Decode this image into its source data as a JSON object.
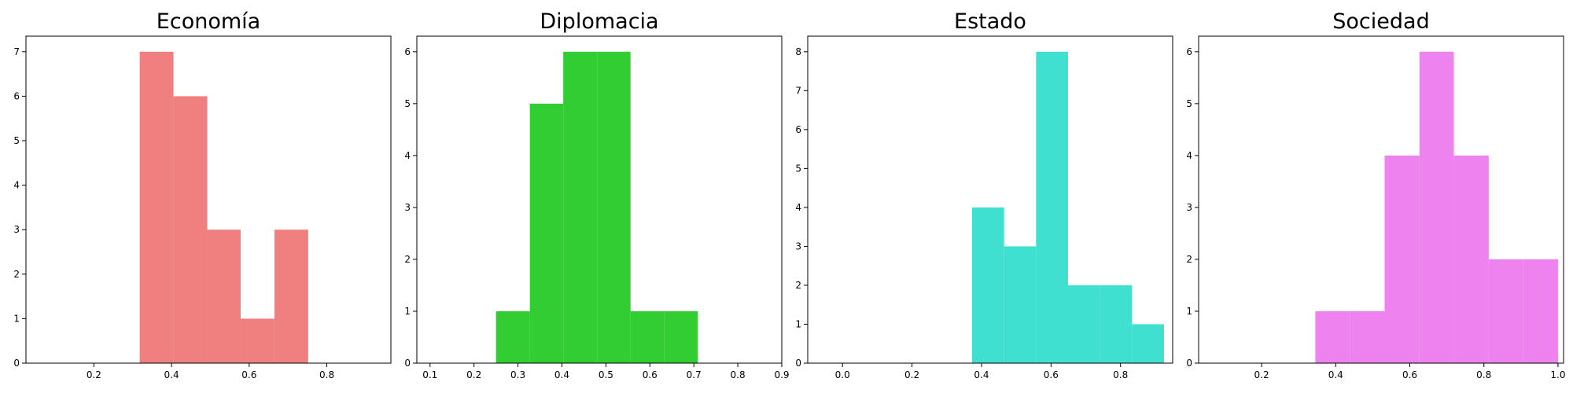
{
  "chart_data": [
    {
      "type": "bar",
      "title": "Economía",
      "color": "#f08080",
      "xlim": [
        0.025,
        0.965
      ],
      "ylim": [
        0,
        7.35
      ],
      "xticks": [
        0.2,
        0.4,
        0.6,
        0.8
      ],
      "xtick_labels": [
        "0.2",
        "0.4",
        "0.6",
        "0.8"
      ],
      "yticks": [
        0,
        1,
        2,
        3,
        4,
        5,
        6,
        7
      ],
      "ytick_labels": [
        "0",
        "1",
        "2",
        "3",
        "4",
        "5",
        "6",
        "7"
      ],
      "bins": [
        {
          "x0": 0.318,
          "x1": 0.405,
          "count": 7
        },
        {
          "x0": 0.405,
          "x1": 0.492,
          "count": 6
        },
        {
          "x0": 0.492,
          "x1": 0.578,
          "count": 3
        },
        {
          "x0": 0.578,
          "x1": 0.665,
          "count": 1
        },
        {
          "x0": 0.665,
          "x1": 0.752,
          "count": 3
        }
      ]
    },
    {
      "type": "bar",
      "title": "Diplomacia",
      "color": "#32cd32",
      "xlim": [
        0.07,
        0.9
      ],
      "ylim": [
        0,
        6.3
      ],
      "xticks": [
        0.1,
        0.2,
        0.3,
        0.4,
        0.5,
        0.6,
        0.7,
        0.8,
        0.9
      ],
      "xtick_labels": [
        "0.1",
        "0.2",
        "0.3",
        "0.4",
        "0.5",
        "0.6",
        "0.7",
        "0.8",
        "0.9"
      ],
      "yticks": [
        0,
        1,
        2,
        3,
        4,
        5,
        6
      ],
      "ytick_labels": [
        "0",
        "1",
        "2",
        "3",
        "4",
        "5",
        "6"
      ],
      "bins": [
        {
          "x0": 0.25,
          "x1": 0.327,
          "count": 1
        },
        {
          "x0": 0.327,
          "x1": 0.403,
          "count": 5
        },
        {
          "x0": 0.403,
          "x1": 0.48,
          "count": 6
        },
        {
          "x0": 0.48,
          "x1": 0.556,
          "count": 6
        },
        {
          "x0": 0.556,
          "x1": 0.633,
          "count": 1
        },
        {
          "x0": 0.633,
          "x1": 0.709,
          "count": 1
        }
      ]
    },
    {
      "type": "bar",
      "title": "Estado",
      "color": "#40e0d0",
      "xlim": [
        -0.1,
        0.95
      ],
      "ylim": [
        0,
        8.4
      ],
      "xticks": [
        0.0,
        0.2,
        0.4,
        0.6,
        0.8
      ],
      "xtick_labels": [
        "0.0",
        "0.2",
        "0.4",
        "0.6",
        "0.8"
      ],
      "yticks": [
        0,
        1,
        2,
        3,
        4,
        5,
        6,
        7,
        8
      ],
      "ytick_labels": [
        "0",
        "1",
        "2",
        "3",
        "4",
        "5",
        "6",
        "7",
        "8"
      ],
      "bins": [
        {
          "x0": 0.373,
          "x1": 0.465,
          "count": 4
        },
        {
          "x0": 0.465,
          "x1": 0.557,
          "count": 3
        },
        {
          "x0": 0.557,
          "x1": 0.649,
          "count": 8
        },
        {
          "x0": 0.649,
          "x1": 0.741,
          "count": 2
        },
        {
          "x0": 0.741,
          "x1": 0.833,
          "count": 2
        },
        {
          "x0": 0.833,
          "x1": 0.925,
          "count": 1
        }
      ]
    },
    {
      "type": "bar",
      "title": "Sociedad",
      "color": "#ee82ee",
      "xlim": [
        0.03,
        1.015
      ],
      "ylim": [
        0,
        6.3
      ],
      "xticks": [
        0.2,
        0.4,
        0.6,
        0.8,
        1.0
      ],
      "xtick_labels": [
        "0.2",
        "0.4",
        "0.6",
        "0.8",
        "1.0"
      ],
      "yticks": [
        0,
        1,
        2,
        3,
        4,
        5,
        6
      ],
      "ytick_labels": [
        "0",
        "1",
        "2",
        "3",
        "4",
        "5",
        "6"
      ],
      "bins": [
        {
          "x0": 0.345,
          "x1": 0.439,
          "count": 1
        },
        {
          "x0": 0.439,
          "x1": 0.532,
          "count": 1
        },
        {
          "x0": 0.532,
          "x1": 0.626,
          "count": 4
        },
        {
          "x0": 0.626,
          "x1": 0.719,
          "count": 6
        },
        {
          "x0": 0.719,
          "x1": 0.813,
          "count": 4
        },
        {
          "x0": 0.813,
          "x1": 0.906,
          "count": 2
        },
        {
          "x0": 0.906,
          "x1": 1.0,
          "count": 2
        }
      ]
    }
  ]
}
